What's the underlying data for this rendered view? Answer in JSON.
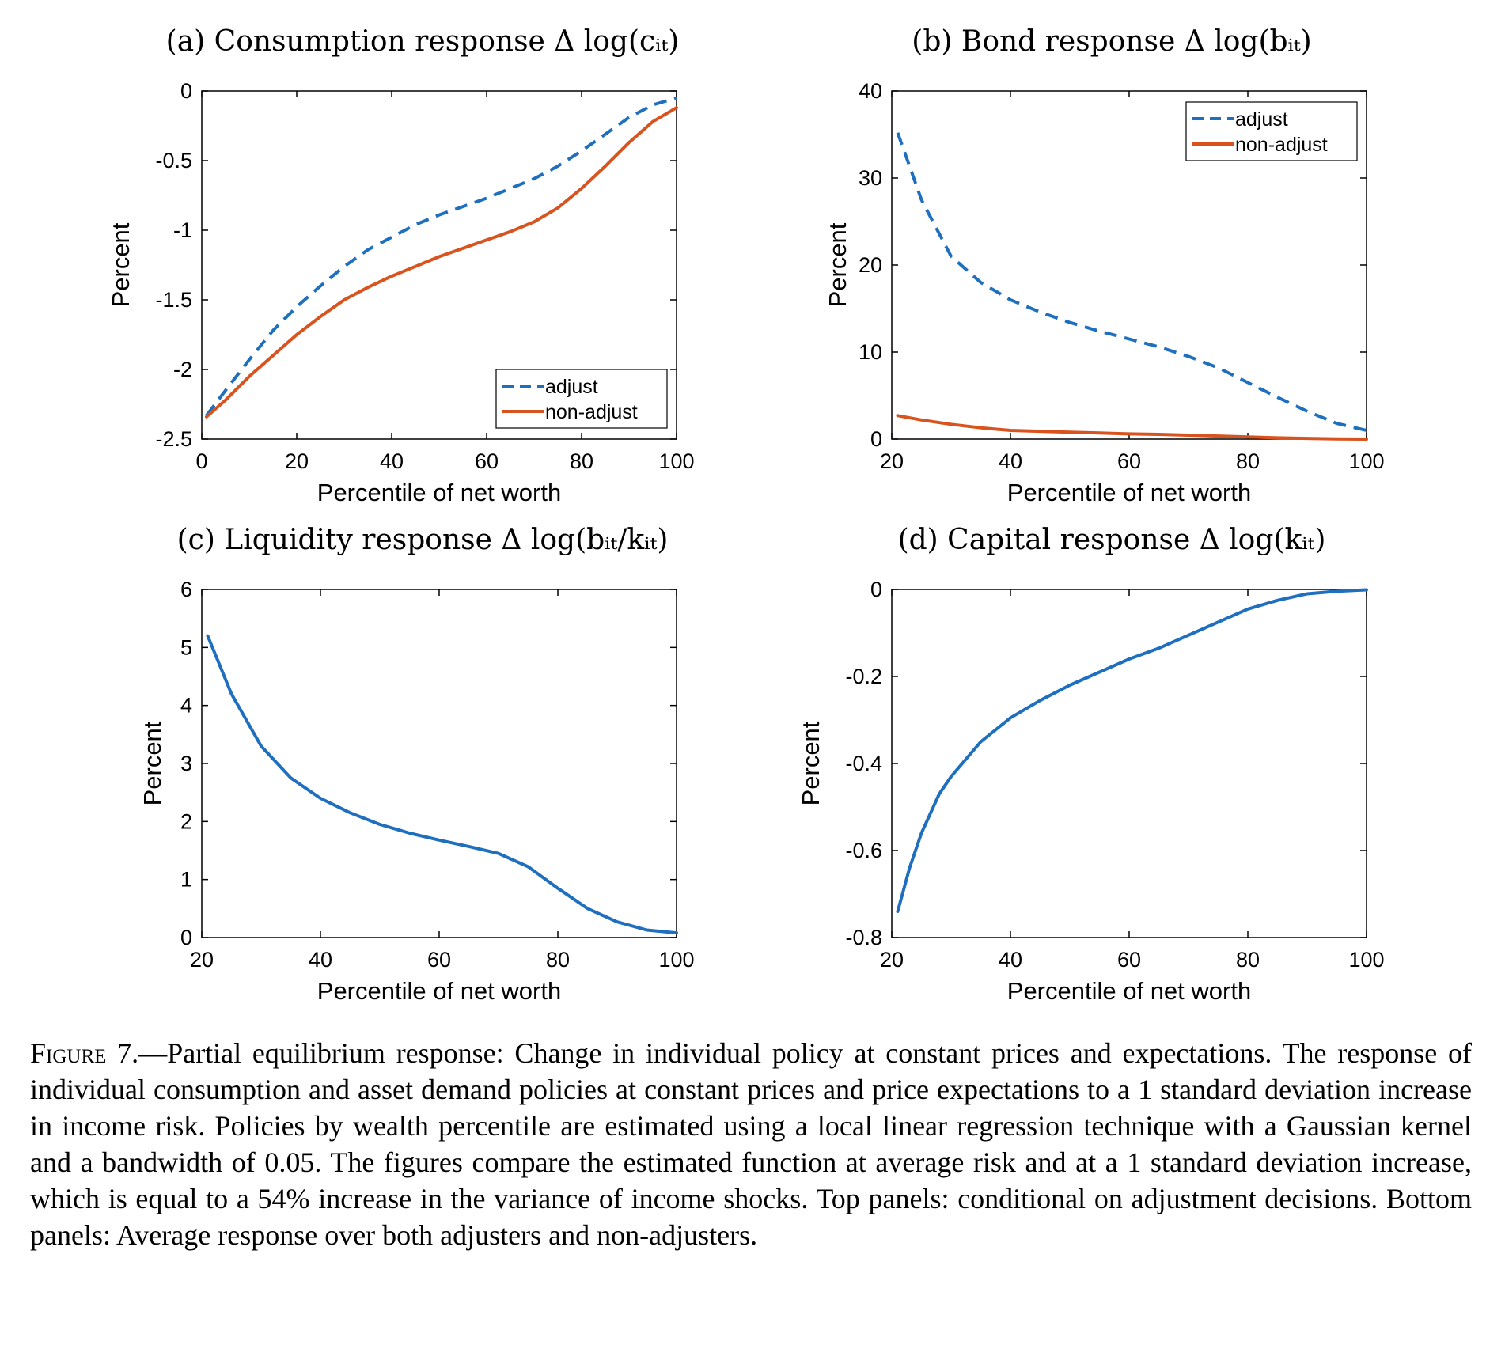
{
  "colors": {
    "adjust": "#1f6fbf",
    "non_adjust": "#d9531e",
    "single": "#1f6fbf",
    "axis": "#000000"
  },
  "chart_data": [
    {
      "id": "a",
      "type": "line",
      "title": "(a) Consumption response Δ log(cᵢₜ)",
      "xlabel": "Percentile of net worth",
      "ylabel": "Percent",
      "xlim": [
        0,
        100
      ],
      "ylim": [
        -2.5,
        0
      ],
      "xticks": [
        0,
        20,
        40,
        60,
        80,
        100
      ],
      "xtick_labels": [
        "0",
        "20",
        "40",
        "60",
        "80",
        "100"
      ],
      "yticks": [
        0,
        -0.5,
        -1,
        -1.5,
        -2,
        -2.5
      ],
      "ytick_labels": [
        "0",
        "-0.5",
        "-1",
        "-1.5",
        "-2",
        "-2.5"
      ],
      "legend_position": "bottom-right",
      "series": [
        {
          "name": "adjust",
          "style": "dashed",
          "x": [
            1,
            5,
            10,
            15,
            20,
            25,
            30,
            35,
            40,
            45,
            50,
            55,
            60,
            65,
            70,
            75,
            80,
            85,
            90,
            95,
            100
          ],
          "y": [
            -2.33,
            -2.15,
            -1.93,
            -1.72,
            -1.55,
            -1.4,
            -1.26,
            -1.14,
            -1.05,
            -0.96,
            -0.89,
            -0.83,
            -0.77,
            -0.7,
            -0.63,
            -0.54,
            -0.43,
            -0.31,
            -0.19,
            -0.1,
            -0.05
          ]
        },
        {
          "name": "non-adjust",
          "style": "solid",
          "x": [
            1,
            5,
            10,
            15,
            20,
            25,
            30,
            35,
            40,
            45,
            50,
            55,
            60,
            65,
            70,
            75,
            80,
            85,
            90,
            95,
            100
          ],
          "y": [
            -2.34,
            -2.22,
            -2.05,
            -1.9,
            -1.75,
            -1.62,
            -1.5,
            -1.41,
            -1.33,
            -1.26,
            -1.19,
            -1.13,
            -1.07,
            -1.01,
            -0.94,
            -0.84,
            -0.7,
            -0.54,
            -0.37,
            -0.22,
            -0.12
          ]
        }
      ]
    },
    {
      "id": "b",
      "type": "line",
      "title": "(b) Bond response Δ log(bᵢₜ)",
      "xlabel": "Percentile of net worth",
      "ylabel": "Percent",
      "xlim": [
        20,
        100
      ],
      "ylim": [
        0,
        40
      ],
      "xticks": [
        20,
        40,
        60,
        80,
        100
      ],
      "xtick_labels": [
        "20",
        "40",
        "60",
        "80",
        "100"
      ],
      "yticks": [
        0,
        10,
        20,
        30,
        40
      ],
      "ytick_labels": [
        "0",
        "10",
        "20",
        "30",
        "40"
      ],
      "legend_position": "top-right",
      "series": [
        {
          "name": "adjust",
          "style": "dashed",
          "x": [
            21,
            25,
            30,
            35,
            40,
            45,
            50,
            55,
            60,
            65,
            70,
            75,
            80,
            85,
            90,
            95,
            100
          ],
          "y": [
            35.2,
            27.5,
            21.0,
            18.0,
            16.0,
            14.6,
            13.4,
            12.4,
            11.5,
            10.6,
            9.5,
            8.2,
            6.5,
            4.8,
            3.2,
            1.8,
            1.0
          ]
        },
        {
          "name": "non-adjust",
          "style": "solid",
          "x": [
            21,
            25,
            30,
            35,
            40,
            45,
            50,
            55,
            60,
            65,
            70,
            75,
            80,
            85,
            90,
            95,
            100
          ],
          "y": [
            2.7,
            2.2,
            1.7,
            1.3,
            1.0,
            0.9,
            0.8,
            0.7,
            0.6,
            0.55,
            0.45,
            0.35,
            0.25,
            0.15,
            0.08,
            0.03,
            0.0
          ]
        }
      ]
    },
    {
      "id": "c",
      "type": "line",
      "title": "(c) Liquidity response Δ log(bᵢₜ/kᵢₜ)",
      "xlabel": "Percentile of net worth",
      "ylabel": "Percent",
      "xlim": [
        20,
        100
      ],
      "ylim": [
        0,
        6
      ],
      "xticks": [
        20,
        40,
        60,
        80,
        100
      ],
      "xtick_labels": [
        "20",
        "40",
        "60",
        "80",
        "100"
      ],
      "yticks": [
        0,
        1,
        2,
        3,
        4,
        5,
        6
      ],
      "ytick_labels": [
        "0",
        "1",
        "2",
        "3",
        "4",
        "5",
        "6"
      ],
      "series": [
        {
          "name": "",
          "style": "solid",
          "x": [
            21,
            25,
            30,
            35,
            40,
            45,
            50,
            55,
            60,
            65,
            70,
            75,
            80,
            85,
            90,
            95,
            100
          ],
          "y": [
            5.2,
            4.2,
            3.3,
            2.75,
            2.4,
            2.15,
            1.95,
            1.8,
            1.68,
            1.57,
            1.45,
            1.22,
            0.85,
            0.5,
            0.27,
            0.13,
            0.08
          ]
        }
      ]
    },
    {
      "id": "d",
      "type": "line",
      "title": "(d) Capital response Δ log(kᵢₜ)",
      "xlabel": "Percentile of net worth",
      "ylabel": "Percent",
      "xlim": [
        20,
        100
      ],
      "ylim": [
        -0.8,
        0
      ],
      "xticks": [
        20,
        40,
        60,
        80,
        100
      ],
      "xtick_labels": [
        "20",
        "40",
        "60",
        "80",
        "100"
      ],
      "yticks": [
        0,
        -0.2,
        -0.4,
        -0.6,
        -0.8
      ],
      "ytick_labels": [
        "0",
        "-0.2",
        "-0.4",
        "-0.6",
        "-0.8"
      ],
      "series": [
        {
          "name": "",
          "style": "solid",
          "x": [
            21,
            23,
            25,
            28,
            30,
            35,
            40,
            45,
            50,
            55,
            60,
            65,
            70,
            75,
            80,
            85,
            90,
            95,
            100
          ],
          "y": [
            -0.74,
            -0.64,
            -0.56,
            -0.47,
            -0.43,
            -0.35,
            -0.295,
            -0.255,
            -0.22,
            -0.19,
            -0.16,
            -0.135,
            -0.105,
            -0.075,
            -0.045,
            -0.025,
            -0.01,
            -0.004,
            -0.001
          ]
        }
      ]
    }
  ],
  "caption": {
    "lead": "Figure 7.",
    "text": "—Partial equilibrium response: Change in individual policy at constant prices and expectations. The response of individual consumption and asset demand policies at constant prices and price expectations to a 1 standard deviation increase in income risk. Policies by wealth percentile are estimated using a local linear regression technique with a Gaussian kernel and a bandwidth of 0.05. The figures compare the estimated function at average risk and at a 1 standard deviation increase, which is equal to a 54% increase in the variance of income shocks. Top panels: conditional on adjustment decisions. Bottom panels: Average response over both adjusters and non-adjusters."
  }
}
